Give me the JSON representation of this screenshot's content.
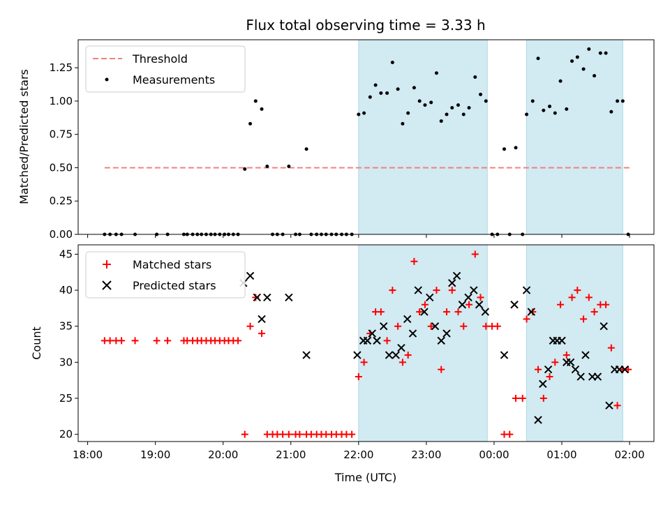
{
  "chart_data": {
    "title": "Flux total observing time = 3.33 h",
    "xlabel": "Time (UTC)",
    "x_ticks": [
      "18:00",
      "19:00",
      "20:00",
      "21:00",
      "22:00",
      "23:00",
      "00:00",
      "01:00",
      "02:00"
    ],
    "x_range_hours": [
      17.86,
      26.36
    ],
    "shaded_intervals_hours": [
      [
        22.0,
        23.9
      ],
      [
        24.48,
        25.9
      ]
    ],
    "shade_color": "#add8e6",
    "panels": [
      {
        "type": "scatter",
        "ylabel": "Matched/Predicted stars",
        "ylim": [
          0,
          1.46
        ],
        "y_ticks": [
          "0.00",
          "0.25",
          "0.50",
          "0.75",
          "1.00",
          "1.25"
        ],
        "y_tick_values": [
          0,
          0.25,
          0.5,
          0.75,
          1.0,
          1.25
        ],
        "threshold": {
          "name": "Threshold",
          "value": 0.5,
          "x_start": 18.25,
          "x_end": 26.0,
          "color": "#f08080"
        },
        "series": [
          {
            "name": "Measurements",
            "color": "#000000",
            "x": [
              18.25,
              18.33,
              18.42,
              18.5,
              18.7,
              19.02,
              19.18,
              19.42,
              19.47,
              19.55,
              19.62,
              19.68,
              19.75,
              19.82,
              19.88,
              19.95,
              20.02,
              20.08,
              20.15,
              20.22,
              20.32,
              20.4,
              20.48,
              20.57,
              20.65,
              20.73,
              20.8,
              20.88,
              20.97,
              21.07,
              21.13,
              21.23,
              21.3,
              21.38,
              21.45,
              21.52,
              21.6,
              21.67,
              21.75,
              21.82,
              21.9,
              22.0,
              22.08,
              22.17,
              22.25,
              22.33,
              22.42,
              22.5,
              22.58,
              22.65,
              22.73,
              22.82,
              22.9,
              22.98,
              23.07,
              23.15,
              23.22,
              23.3,
              23.38,
              23.47,
              23.55,
              23.63,
              23.72,
              23.8,
              23.88,
              23.97,
              24.05,
              24.15,
              24.23,
              24.32,
              24.42,
              24.48,
              24.57,
              24.65,
              24.73,
              24.82,
              24.9,
              24.98,
              25.07,
              25.15,
              25.23,
              25.32,
              25.4,
              25.48,
              25.57,
              25.65,
              25.73,
              25.82,
              25.9,
              25.98
            ],
            "y": [
              0,
              0,
              0,
              0,
              0,
              0,
              0,
              0,
              0,
              0,
              0,
              0,
              0,
              0,
              0,
              0,
              0,
              0,
              0,
              0,
              0.49,
              0.83,
              1.0,
              0.94,
              0.51,
              0,
              0,
              0,
              0.51,
              0,
              0,
              0.64,
              0,
              0,
              0,
              0,
              0,
              0,
              0,
              0,
              0,
              0.9,
              0.91,
              1.03,
              1.12,
              1.06,
              1.06,
              1.29,
              1.09,
              0.83,
              0.91,
              1.1,
              1.0,
              0.97,
              0.99,
              1.21,
              0.85,
              0.9,
              0.95,
              0.97,
              0.9,
              0.95,
              1.18,
              1.05,
              1.0,
              0,
              0,
              0.64,
              0,
              0.65,
              0,
              0.9,
              1.0,
              1.32,
              0.93,
              0.96,
              0.91,
              1.15,
              0.94,
              1.3,
              1.33,
              1.24,
              1.39,
              1.19,
              1.36,
              1.36,
              0.92,
              1.0,
              1.0,
              0
            ]
          }
        ]
      },
      {
        "type": "scatter",
        "ylabel": "Count",
        "ylim": [
          19,
          46.3
        ],
        "y_ticks": [
          "20",
          "25",
          "30",
          "35",
          "40",
          "45"
        ],
        "y_tick_values": [
          20,
          25,
          30,
          35,
          40,
          45
        ],
        "series": [
          {
            "name": "Matched stars",
            "marker": "plus",
            "color": "#ff0000",
            "x": [
              18.25,
              18.33,
              18.42,
              18.5,
              18.7,
              19.02,
              19.18,
              19.42,
              19.47,
              19.55,
              19.62,
              19.68,
              19.75,
              19.82,
              19.88,
              19.95,
              20.02,
              20.08,
              20.15,
              20.22,
              20.32,
              20.4,
              20.48,
              20.57,
              20.65,
              20.73,
              20.8,
              20.88,
              20.97,
              21.07,
              21.13,
              21.23,
              21.3,
              21.38,
              21.45,
              21.52,
              21.6,
              21.67,
              21.75,
              21.82,
              21.9,
              22.0,
              22.08,
              22.17,
              22.25,
              22.33,
              22.42,
              22.5,
              22.58,
              22.65,
              22.73,
              22.82,
              22.9,
              22.98,
              23.07,
              23.15,
              23.22,
              23.3,
              23.38,
              23.47,
              23.55,
              23.63,
              23.72,
              23.8,
              23.88,
              23.97,
              24.05,
              24.15,
              24.23,
              24.32,
              24.42,
              24.48,
              24.57,
              24.65,
              24.73,
              24.82,
              24.9,
              24.98,
              25.07,
              25.15,
              25.23,
              25.32,
              25.4,
              25.48,
              25.57,
              25.65,
              25.73,
              25.82,
              25.9,
              25.98
            ],
            "y": [
              33,
              33,
              33,
              33,
              33,
              33,
              33,
              33,
              33,
              33,
              33,
              33,
              33,
              33,
              33,
              33,
              33,
              33,
              33,
              33,
              20,
              35,
              39,
              34,
              20,
              20,
              20,
              20,
              20,
              20,
              20,
              20,
              20,
              20,
              20,
              20,
              20,
              20,
              20,
              20,
              20,
              28,
              30,
              34,
              37,
              37,
              33,
              40,
              35,
              30,
              31,
              44,
              37,
              38,
              35,
              40,
              29,
              37,
              40,
              37,
              35,
              38,
              45,
              39,
              35,
              35,
              35,
              20,
              20,
              25,
              25,
              36,
              37,
              29,
              25,
              28,
              30,
              38,
              31,
              39,
              40,
              36,
              39,
              37,
              38,
              38,
              32,
              24,
              29,
              29
            ]
          },
          {
            "name": "Predicted stars",
            "marker": "x",
            "color": "#000000",
            "x": [
              20.3,
              20.4,
              20.5,
              20.57,
              20.65,
              20.97,
              21.23,
              21.98,
              22.07,
              22.13,
              22.2,
              22.27,
              22.37,
              22.45,
              22.55,
              22.63,
              22.72,
              22.8,
              22.88,
              22.97,
              23.05,
              23.13,
              23.22,
              23.3,
              23.38,
              23.45,
              23.53,
              23.62,
              23.7,
              23.78,
              23.87,
              24.15,
              24.3,
              24.48,
              24.55,
              24.65,
              24.72,
              24.8,
              24.87,
              24.93,
              25.0,
              25.07,
              25.13,
              25.2,
              25.28,
              25.35,
              25.45,
              25.53,
              25.62,
              25.7,
              25.78,
              25.85,
              25.93
            ],
            "y": [
              41,
              42,
              39,
              36,
              39,
              39,
              31,
              31,
              33,
              33,
              34,
              33,
              35,
              31,
              31,
              32,
              36,
              34,
              40,
              37,
              39,
              35,
              33,
              34,
              41,
              42,
              38,
              39,
              40,
              38,
              37,
              31,
              38,
              40,
              37,
              22,
              27,
              29,
              33,
              33,
              33,
              30,
              30,
              29,
              28,
              31,
              28,
              28,
              35,
              24,
              29,
              29,
              29
            ]
          }
        ]
      }
    ]
  }
}
